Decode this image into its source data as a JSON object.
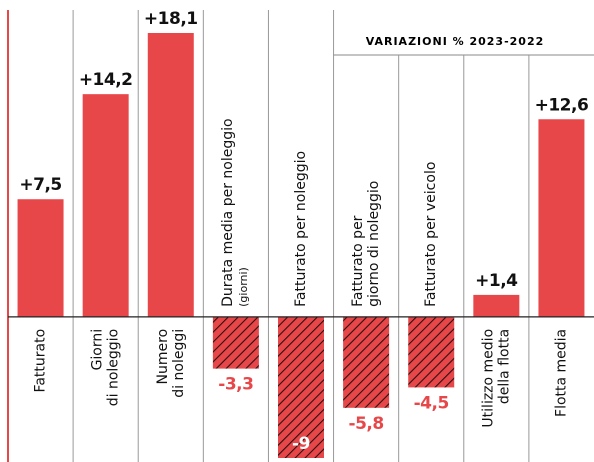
{
  "chart_data": {
    "type": "bar",
    "subtitle": "VARIAZIONI % 2023-2022",
    "categories": [
      "Fatturato",
      "Giorni\ndi noleggio",
      "Numero\ndi noleggi",
      "Durata media per noleggio\n(giorni)",
      "Fatturato per noleggio",
      "Fatturato per\ngiorno di noleggio",
      "Fatturato per veicolo",
      "Utilizzo medio\ndella flotta",
      "Flotta media"
    ],
    "values": [
      7.5,
      14.2,
      18.1,
      -3.3,
      -9,
      -5.8,
      -4.5,
      1.4,
      12.6
    ],
    "value_labels": [
      "+7,5",
      "+14,2",
      "+18,1",
      "-3,3",
      "-9",
      "-5,8",
      "-4,5",
      "+1,4",
      "+12,6"
    ],
    "color": "#e8474a"
  }
}
